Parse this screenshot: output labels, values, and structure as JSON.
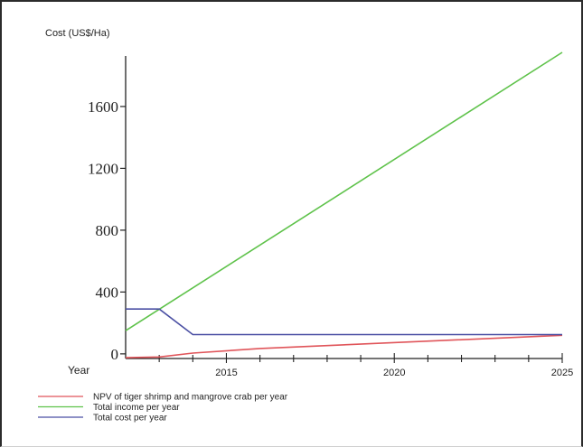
{
  "chart_data": {
    "type": "line",
    "title": "",
    "ylabel": "Cost (US$/Ha)",
    "xlabel": "Year",
    "xlim": [
      2012,
      2025
    ],
    "ylim": [
      -30,
      1950
    ],
    "x_ticks": [
      2015,
      2020,
      2025
    ],
    "y_ticks": [
      0,
      400,
      800,
      1200,
      1600
    ],
    "grid": false,
    "legend_position": "bottom-left",
    "series": [
      {
        "name": "NPV of tiger shrimp and mangrove crab per year",
        "color": "#e0555a",
        "x": [
          2012,
          2013,
          2014,
          2016,
          2025
        ],
        "y": [
          -25,
          -20,
          5,
          35,
          120
        ]
      },
      {
        "name": "Total income per year",
        "color": "#5ec24a",
        "x": [
          2012,
          2025
        ],
        "y": [
          150,
          1950
        ]
      },
      {
        "name": "Total cost per year",
        "color": "#4a4fa3",
        "x": [
          2012,
          2013,
          2014,
          2025
        ],
        "y": [
          290,
          290,
          125,
          125
        ]
      }
    ]
  }
}
